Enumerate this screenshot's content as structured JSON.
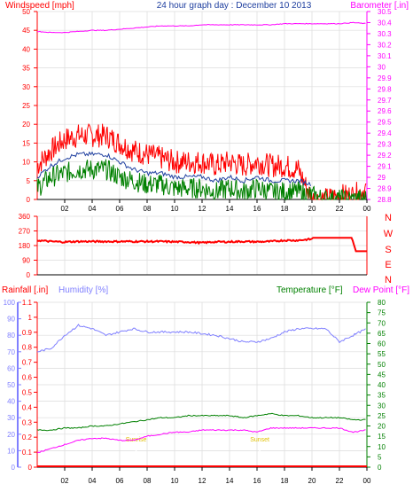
{
  "chart_data": [
    {
      "type": "line",
      "title": "24 hour graph day : December 10 2013",
      "left_axis_label": "Windspeed [mph]",
      "right_axis_label": "Barometer [.in]",
      "x_tick_labels": [
        "02",
        "04",
        "06",
        "08",
        "10",
        "12",
        "14",
        "16",
        "18",
        "20",
        "22",
        "00"
      ],
      "left_ticks": [
        0,
        5,
        10,
        15,
        20,
        25,
        30,
        35,
        40,
        45,
        50
      ],
      "right_ticks": [
        "28.8",
        "28.9",
        "29",
        "29.1",
        "29.2",
        "29.3",
        "29.4",
        "29.5",
        "29.6",
        "29.7",
        "29.8",
        "29.9",
        "30",
        "30.1",
        "30.2",
        "30.3",
        "30.4",
        "30.5"
      ],
      "ylim_left": [
        0,
        50
      ],
      "ylim_right": [
        28.8,
        30.5
      ],
      "grid": true,
      "series": [
        {
          "name": "Windspeed",
          "color": "#ff0000",
          "axis": "right",
          "x": [
            0,
            1,
            2,
            3,
            4,
            5,
            6,
            7,
            8,
            9,
            10,
            11,
            12,
            13,
            14,
            15,
            16,
            17,
            18,
            19,
            20,
            21,
            22,
            23,
            24
          ],
          "y": [
            9,
            13,
            16,
            17,
            17,
            17,
            15,
            13,
            12,
            11,
            10,
            10,
            10,
            9,
            10,
            9,
            10,
            9,
            9,
            8,
            0,
            0,
            1,
            1,
            3
          ]
        },
        {
          "name": "Average wind",
          "color": "#1f3f9f",
          "axis": "left",
          "x": [
            0,
            1,
            2,
            3,
            4,
            5,
            6,
            7,
            8,
            9,
            10,
            11,
            12,
            13,
            14,
            15,
            16,
            17,
            18,
            19,
            20
          ],
          "y": [
            6,
            9,
            11,
            12,
            12,
            12,
            10,
            8,
            7,
            7,
            6,
            6,
            6,
            5,
            6,
            5,
            6,
            5,
            5,
            5,
            4
          ]
        },
        {
          "name": "Wind",
          "color": "#008000",
          "axis": "left",
          "x": [
            0,
            1,
            2,
            3,
            4,
            5,
            6,
            7,
            8,
            9,
            10,
            11,
            12,
            13,
            14,
            15,
            16,
            17,
            18,
            19,
            20,
            21,
            22,
            23,
            24
          ],
          "y": [
            3,
            6,
            7,
            8,
            8,
            8,
            6,
            5,
            4,
            4,
            3,
            3,
            3,
            2,
            3,
            2,
            3,
            2,
            2,
            2,
            1,
            0,
            0,
            0,
            0
          ]
        },
        {
          "name": "Barometer",
          "color": "#ff00ff",
          "axis": "right",
          "x": [
            0,
            1,
            2,
            3,
            4,
            5,
            6,
            7,
            8,
            9,
            10,
            11,
            12,
            13,
            14,
            15,
            16,
            17,
            18,
            19,
            20,
            21,
            22,
            23,
            24
          ],
          "y": [
            30.32,
            30.31,
            30.31,
            30.32,
            30.33,
            30.33,
            30.34,
            30.35,
            30.36,
            30.37,
            30.37,
            30.37,
            30.38,
            30.38,
            30.38,
            30.38,
            30.38,
            30.38,
            30.39,
            30.39,
            30.39,
            30.39,
            30.39,
            30.4,
            30.39
          ]
        }
      ]
    },
    {
      "type": "line",
      "left_ticks": [
        0,
        90,
        180,
        270,
        360
      ],
      "direction_labels": [
        "N",
        "W",
        "S",
        "E",
        "N"
      ],
      "ylim": [
        0,
        360
      ],
      "series": [
        {
          "name": "Wind direction",
          "color": "#ff0000",
          "x": [
            0,
            1,
            2,
            3,
            4,
            5,
            6,
            7,
            8,
            9,
            10,
            11,
            12,
            13,
            14,
            15,
            16,
            17,
            18,
            19,
            20,
            20.01,
            22,
            22.9,
            23.2,
            24
          ],
          "y": [
            212,
            205,
            202,
            205,
            205,
            205,
            205,
            205,
            205,
            205,
            203,
            202,
            197,
            203,
            203,
            205,
            203,
            205,
            212,
            212,
            220,
            228,
            228,
            228,
            145,
            145
          ]
        }
      ]
    },
    {
      "type": "line",
      "left_label_1": "Rainfall [.in]",
      "left_label_2": "Humidity [%]",
      "right_label_1": "Temperature [°F]",
      "right_label_2": "Dew Point [°F]",
      "x_tick_labels": [
        "02",
        "04",
        "06",
        "08",
        "10",
        "12",
        "14",
        "16",
        "18",
        "20",
        "22",
        "00"
      ],
      "humidity_ticks": [
        0,
        10,
        20,
        30,
        40,
        50,
        60,
        70,
        80,
        90,
        100
      ],
      "rain_ticks": [
        "0",
        "0.1",
        "0.2",
        "0.3",
        "0.4",
        "0.5",
        "0.6",
        "0.7",
        "0.8",
        "0.9",
        "1",
        "1.1"
      ],
      "temp_ticks": [
        0,
        5,
        10,
        15,
        20,
        25,
        30,
        35,
        40,
        45,
        50,
        55,
        60,
        65,
        70,
        75,
        80
      ],
      "annotations": [
        "Sunrise",
        "Sunset"
      ],
      "annotation_hours": [
        7.2,
        16.2
      ],
      "series": [
        {
          "name": "Humidity",
          "color": "#8080ff",
          "axis": "humidity",
          "x": [
            0,
            1,
            2,
            3,
            4,
            5,
            6,
            7,
            8,
            9,
            10,
            11,
            12,
            13,
            14,
            15,
            16,
            17,
            18,
            19,
            20,
            21,
            22,
            23,
            24
          ],
          "y": [
            70,
            72,
            80,
            86,
            84,
            80,
            82,
            84,
            82,
            82,
            82,
            82,
            81,
            80,
            78,
            76,
            76,
            78,
            82,
            84,
            84,
            84,
            76,
            80,
            84
          ]
        },
        {
          "name": "Temperature",
          "color": "#008000",
          "axis": "temp",
          "x": [
            0,
            1,
            2,
            3,
            4,
            5,
            6,
            7,
            8,
            9,
            10,
            11,
            12,
            13,
            14,
            15,
            16,
            17,
            18,
            19,
            20,
            21,
            22,
            23,
            24
          ],
          "y": [
            18,
            18,
            19,
            19,
            20,
            20,
            21,
            22,
            23,
            24,
            24,
            25,
            25,
            25,
            25,
            24,
            25,
            26,
            25,
            25,
            24,
            24,
            24,
            23,
            23
          ]
        },
        {
          "name": "Dew Point",
          "color": "#ff00ff",
          "axis": "temp",
          "x": [
            0,
            1,
            2,
            3,
            4,
            5,
            6,
            7,
            8,
            9,
            10,
            11,
            12,
            13,
            14,
            15,
            16,
            17,
            18,
            19,
            20,
            21,
            22,
            23,
            24
          ],
          "y": [
            7,
            9,
            11,
            13,
            14,
            14,
            13,
            13,
            15,
            16,
            17,
            17,
            18,
            18,
            18,
            18,
            17,
            19,
            19,
            19,
            19,
            19,
            19,
            17,
            18
          ]
        },
        {
          "name": "Rainfall",
          "color": "#ff0000",
          "axis": "rain",
          "x": [
            0,
            24
          ],
          "y": [
            0,
            0
          ]
        }
      ]
    }
  ]
}
